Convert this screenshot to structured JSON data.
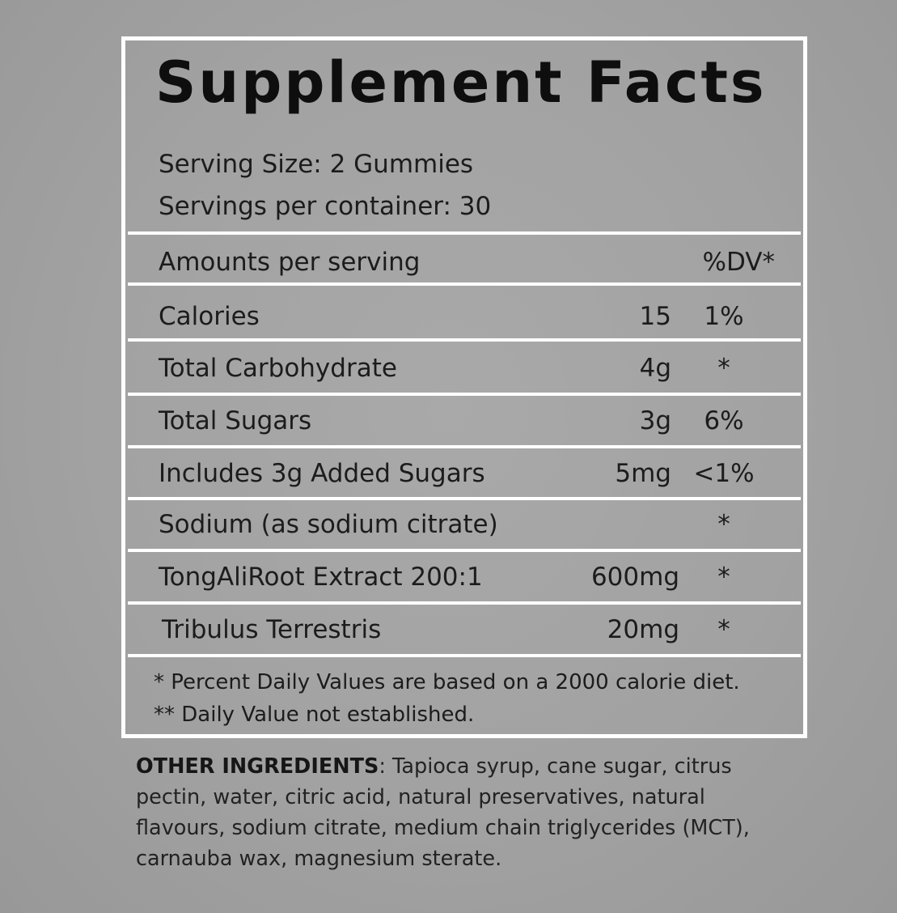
{
  "title": "Supplement Facts",
  "serving_size": "Serving Size: 2 Gummies",
  "servings_per_container": "Servings per container: 30",
  "header": {
    "amounts_label": "Amounts per serving",
    "dv_label": "%DV*"
  },
  "nutrients": [
    {
      "name": "Calories",
      "amount": "15",
      "dv": "1%"
    },
    {
      "name": "Total Carbohydrate",
      "amount": "4g",
      "dv": "*"
    },
    {
      "name": "Total Sugars",
      "amount": "3g",
      "dv": "6%"
    },
    {
      "name": "Includes 3g Added Sugars",
      "amount": "5mg",
      "dv": "<1%"
    },
    {
      "name": "Sodium (as sodium citrate)",
      "amount": "",
      "dv": "*"
    },
    {
      "name": "TongAliRoot Extract 200:1",
      "amount": "600mg",
      "dv": "*"
    },
    {
      "name": "Tribulus Terrestris",
      "amount": "20mg",
      "dv": "*"
    }
  ],
  "footnotes": {
    "note1": "* Percent Daily Values are based on a 2000 calorie diet.",
    "note2": "** Daily Value not established."
  },
  "other_ingredients": {
    "label": "OTHER INGREDIENTS",
    "text": ": Tapioca syrup, cane sugar, citrus pectin, water, citric acid, natural preservatives, natural flavours, sodium citrate, medium chain triglycerides (MCT), carnauba wax, magnesium sterate."
  }
}
